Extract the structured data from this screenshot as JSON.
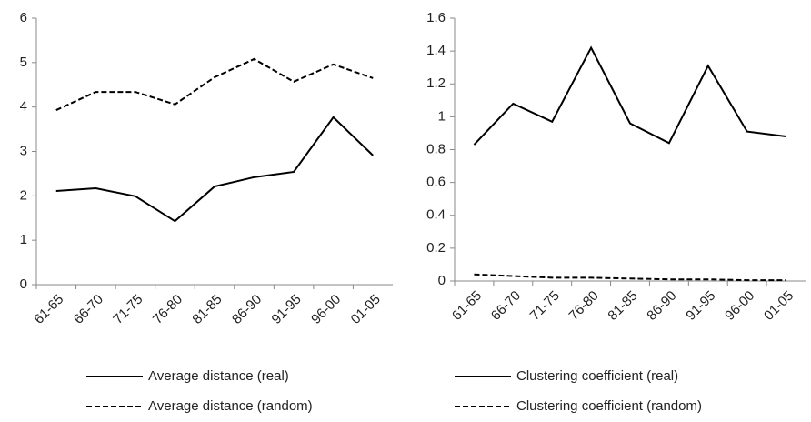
{
  "chart_data": [
    {
      "type": "line",
      "categories": [
        "61-65",
        "66-70",
        "71-75",
        "76-80",
        "81-85",
        "86-90",
        "91-95",
        "96-00",
        "01-05"
      ],
      "series": [
        {
          "name": "Average distance (real)",
          "color": "#000000",
          "dash": false,
          "values": [
            2.11,
            2.17,
            1.99,
            1.43,
            2.21,
            2.42,
            2.54,
            3.77,
            2.91
          ]
        },
        {
          "name": "Average distance (random)",
          "color": "#000000",
          "dash": true,
          "values": [
            3.93,
            4.34,
            4.34,
            4.06,
            4.67,
            5.08,
            4.57,
            4.96,
            4.65
          ]
        }
      ],
      "ylim": [
        0,
        6
      ],
      "yticks": [
        0,
        1,
        2,
        3,
        4,
        5,
        6
      ],
      "grid": false
    },
    {
      "type": "line",
      "categories": [
        "61-65",
        "66-70",
        "71-75",
        "76-80",
        "81-85",
        "86-90",
        "91-95",
        "96-00",
        "01-05"
      ],
      "series": [
        {
          "name": "Clustering coefficient (real)",
          "color": "#000000",
          "dash": false,
          "values": [
            0.83,
            1.08,
            0.97,
            1.42,
            0.96,
            0.84,
            1.31,
            0.91,
            0.88
          ]
        },
        {
          "name": "Clustering coefficient (random)",
          "color": "#000000",
          "dash": true,
          "values": [
            0.04,
            0.03,
            0.02,
            0.02,
            0.015,
            0.01,
            0.01,
            0.005,
            0.005
          ]
        }
      ],
      "ylim": [
        0,
        1.6
      ],
      "yticks": [
        0,
        0.2,
        0.4,
        0.6,
        0.8,
        1,
        1.2,
        1.4,
        1.6
      ],
      "grid": false
    }
  ]
}
